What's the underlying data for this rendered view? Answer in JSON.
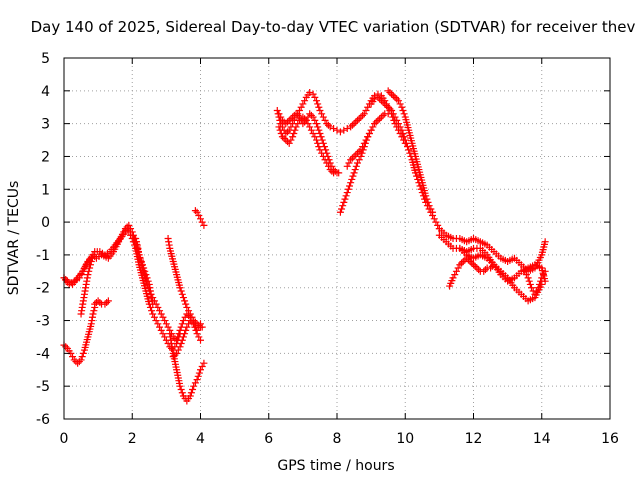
{
  "chart_data": {
    "type": "scatter",
    "title": "Day 140 of 2025, Sidereal Day-to-day VTEC variation (SDTVAR) for receiver thev",
    "xlabel": "GPS time / hours",
    "ylabel": "SDTVAR / TECUs",
    "xlim": [
      0,
      16
    ],
    "ylim": [
      -6,
      5
    ],
    "x_ticks": [
      "0",
      "2",
      "4",
      "6",
      "8",
      "10",
      "12",
      "14",
      "16"
    ],
    "y_ticks": [
      "-6",
      "-5",
      "-4",
      "-3",
      "-2",
      "-1",
      "0",
      "1",
      "2",
      "3",
      "4",
      "5"
    ],
    "grid": true,
    "marker": "+",
    "color": "#ff0000",
    "series": [
      {
        "x": [
          0.0,
          0.1,
          0.25,
          0.4,
          0.55,
          0.65,
          0.8,
          0.9,
          1.05,
          1.2,
          1.35,
          1.5,
          1.65,
          1.8,
          1.9
        ],
        "y": [
          -1.7,
          -1.8,
          -1.9,
          -1.7,
          -1.5,
          -1.3,
          -1.1,
          -0.9,
          -0.9,
          -1.0,
          -0.9,
          -0.7,
          -0.5,
          -0.3,
          -0.2
        ]
      },
      {
        "x": [
          0.0,
          0.15,
          0.3,
          0.45,
          0.55,
          0.7,
          0.85,
          0.95,
          1.1,
          1.3,
          1.45,
          1.6,
          1.75,
          1.85
        ],
        "y": [
          -1.7,
          -1.9,
          -1.8,
          -1.7,
          -1.5,
          -1.2,
          -1.0,
          -1.1,
          -1.0,
          -1.1,
          -0.9,
          -0.6,
          -0.3,
          -0.2
        ]
      },
      {
        "x": [
          0.5,
          0.55,
          0.6,
          0.65,
          0.7,
          0.75,
          0.8,
          0.85
        ],
        "y": [
          -2.8,
          -2.5,
          -2.2,
          -1.9,
          -1.6,
          -1.4,
          -1.2,
          -1.0
        ]
      },
      {
        "x": [
          0.0,
          0.1,
          0.2,
          0.3,
          0.4,
          0.5,
          0.6,
          0.7,
          0.8,
          0.85,
          0.9
        ],
        "y": [
          -3.75,
          -3.85,
          -4.0,
          -4.2,
          -4.3,
          -4.2,
          -3.9,
          -3.5,
          -3.1,
          -2.8,
          -2.6
        ]
      },
      {
        "x": [
          0.9,
          1.0,
          1.1,
          1.2,
          1.3
        ],
        "y": [
          -2.5,
          -2.4,
          -2.5,
          -2.5,
          -2.4
        ]
      },
      {
        "x": [
          1.8,
          1.9,
          2.0,
          2.1,
          2.2,
          2.3,
          2.4,
          2.5,
          2.6,
          2.7,
          2.8,
          2.9,
          3.0,
          3.1,
          3.2,
          3.3,
          3.4,
          3.5,
          3.6,
          3.7,
          3.8,
          3.9,
          4.0
        ],
        "y": [
          -0.2,
          -0.1,
          -0.3,
          -0.6,
          -1.0,
          -1.4,
          -1.8,
          -2.1,
          -2.3,
          -2.5,
          -2.7,
          -2.9,
          -3.1,
          -3.3,
          -3.5,
          -3.6,
          -3.3,
          -3.0,
          -2.8,
          -2.9,
          -3.1,
          -3.3,
          -3.1
        ]
      },
      {
        "x": [
          1.9,
          2.0,
          2.1,
          2.2,
          2.3,
          2.4,
          2.5,
          2.6,
          2.7,
          2.8,
          2.9,
          3.0,
          3.1,
          3.2,
          3.3,
          3.4
        ],
        "y": [
          -0.3,
          -0.5,
          -0.8,
          -1.3,
          -1.7,
          -2.1,
          -2.5,
          -2.8,
          -3.0,
          -3.2,
          -3.4,
          -3.6,
          -3.8,
          -3.9,
          -3.7,
          -3.4
        ]
      },
      {
        "x": [
          2.1,
          2.15,
          2.2,
          2.3,
          2.4,
          2.5,
          2.55,
          2.6
        ],
        "y": [
          -0.5,
          -0.7,
          -1.0,
          -1.3,
          -1.6,
          -1.9,
          -2.2,
          -2.5
        ]
      },
      {
        "x": [
          3.05,
          3.1,
          3.2,
          3.3,
          3.4,
          3.5,
          3.6,
          3.7,
          3.8,
          3.9,
          4.0,
          4.05
        ],
        "y": [
          -0.5,
          -0.8,
          -1.2,
          -1.6,
          -2.0,
          -2.3,
          -2.6,
          -2.8,
          -3.0,
          -3.1,
          -3.2,
          -3.2
        ]
      },
      {
        "x": [
          3.1,
          3.15,
          3.2,
          3.3,
          3.4,
          3.5,
          3.6,
          3.7,
          3.8,
          3.9,
          4.0,
          4.1
        ],
        "y": [
          -3.4,
          -3.7,
          -4.0,
          -4.5,
          -5.0,
          -5.3,
          -5.45,
          -5.3,
          -5.0,
          -4.8,
          -4.5,
          -4.3
        ]
      },
      {
        "x": [
          3.2,
          3.3,
          3.4,
          3.5,
          3.6,
          3.7,
          3.8,
          3.9,
          4.0
        ],
        "y": [
          -4.1,
          -4.0,
          -3.8,
          -3.5,
          -3.2,
          -3.0,
          -3.1,
          -3.4,
          -3.6
        ]
      },
      {
        "x": [
          3.85,
          3.9,
          3.95,
          4.0,
          4.05,
          4.1
        ],
        "y": [
          0.35,
          0.3,
          0.2,
          0.1,
          0.0,
          -0.1
        ]
      },
      {
        "x": [
          6.25,
          6.3,
          6.35,
          6.4,
          6.45,
          6.5,
          6.6,
          6.7,
          6.8,
          6.9,
          7.0,
          7.1,
          7.2,
          7.3,
          7.4,
          7.5,
          7.6,
          7.7,
          7.8,
          7.9,
          8.0,
          8.1,
          8.2,
          8.3,
          8.4,
          8.5,
          8.6,
          8.7,
          8.8,
          8.9,
          9.0,
          9.1,
          9.2,
          9.3,
          9.4,
          9.5,
          9.6,
          9.7,
          9.8,
          9.9,
          10.0
        ],
        "y": [
          3.4,
          3.2,
          3.0,
          2.9,
          2.8,
          2.7,
          2.8,
          3.0,
          3.2,
          3.4,
          3.6,
          3.8,
          3.95,
          3.9,
          3.7,
          3.4,
          3.2,
          3.0,
          2.9,
          2.85,
          2.8,
          2.75,
          2.8,
          2.85,
          2.9,
          3.0,
          3.1,
          3.2,
          3.3,
          3.5,
          3.7,
          3.85,
          3.9,
          3.85,
          3.7,
          3.5,
          3.3,
          3.0,
          2.8,
          2.6,
          2.4
        ]
      },
      {
        "x": [
          6.3,
          6.4,
          6.5,
          6.6,
          6.7,
          6.8,
          6.9,
          7.0,
          7.1,
          7.2,
          7.3,
          7.4,
          7.5,
          7.6,
          7.7,
          7.8,
          7.9,
          8.0,
          8.05
        ],
        "y": [
          3.3,
          3.1,
          3.0,
          3.1,
          3.2,
          3.3,
          3.2,
          3.0,
          3.1,
          3.3,
          3.2,
          3.0,
          2.7,
          2.4,
          2.1,
          1.8,
          1.6,
          1.5,
          1.5
        ]
      },
      {
        "x": [
          6.3,
          6.4,
          6.5,
          6.6,
          6.7,
          6.8,
          6.9,
          7.0,
          7.1,
          7.2,
          7.3,
          7.4,
          7.5,
          7.6,
          7.7,
          7.8,
          7.9
        ],
        "y": [
          2.9,
          2.6,
          2.5,
          2.4,
          2.6,
          2.9,
          3.1,
          3.2,
          3.1,
          2.9,
          2.7,
          2.5,
          2.2,
          2.0,
          1.8,
          1.6,
          1.5
        ]
      },
      {
        "x": [
          8.1,
          8.2,
          8.3,
          8.4,
          8.5,
          8.6,
          8.7,
          8.8,
          8.9,
          9.0,
          9.1,
          9.2,
          9.3,
          9.4,
          9.5
        ],
        "y": [
          0.3,
          0.6,
          0.9,
          1.2,
          1.5,
          1.8,
          2.0,
          2.3,
          2.6,
          2.8,
          3.0,
          3.1,
          3.2,
          3.3,
          3.3
        ]
      },
      {
        "x": [
          8.3,
          8.4,
          8.5,
          8.6,
          8.7,
          8.8,
          8.9,
          9.0
        ],
        "y": [
          1.7,
          1.9,
          2.0,
          2.1,
          2.2,
          2.4,
          2.6,
          2.8
        ]
      },
      {
        "x": [
          9.0,
          9.1,
          9.2,
          9.3,
          9.4,
          9.5,
          9.6,
          9.7,
          9.8,
          9.9,
          10.0,
          10.1,
          10.2,
          10.3,
          10.4,
          10.5,
          10.6,
          10.7,
          10.8,
          10.9,
          11.0
        ],
        "y": [
          3.6,
          3.75,
          3.8,
          3.7,
          3.6,
          3.5,
          3.4,
          3.2,
          3.0,
          2.8,
          2.5,
          2.2,
          1.9,
          1.5,
          1.2,
          0.9,
          0.6,
          0.4,
          0.2,
          0.0,
          -0.2
        ]
      },
      {
        "x": [
          9.5,
          9.6,
          9.7,
          9.8,
          9.9,
          10.0,
          10.1,
          10.2,
          10.3,
          10.4,
          10.5,
          10.6,
          10.7,
          10.8
        ],
        "y": [
          4.0,
          3.9,
          3.8,
          3.7,
          3.5,
          3.2,
          2.8,
          2.4,
          2.0,
          1.6,
          1.2,
          0.8,
          0.5,
          0.3
        ]
      },
      {
        "x": [
          11.0,
          11.2,
          11.4,
          11.6,
          11.8,
          12.0,
          12.2,
          12.4,
          12.6,
          12.8,
          13.0,
          13.2,
          13.4,
          13.6,
          13.8,
          14.0,
          14.1
        ],
        "y": [
          -0.2,
          -0.4,
          -0.5,
          -0.5,
          -0.6,
          -0.5,
          -0.6,
          -0.7,
          -0.9,
          -1.1,
          -1.2,
          -1.1,
          -1.3,
          -1.5,
          -1.4,
          -1.0,
          -0.6
        ]
      },
      {
        "x": [
          11.0,
          11.2,
          11.4,
          11.6,
          11.8,
          12.0,
          12.2,
          12.4,
          12.6,
          12.8,
          13.0,
          13.2,
          13.4,
          13.6,
          13.8,
          14.0,
          14.1
        ],
        "y": [
          -0.4,
          -0.6,
          -0.8,
          -0.8,
          -0.9,
          -0.8,
          -0.8,
          -1.0,
          -1.3,
          -1.6,
          -1.8,
          -1.7,
          -1.5,
          -1.4,
          -1.3,
          -1.4,
          -1.8
        ]
      },
      {
        "x": [
          11.3,
          11.4,
          11.5,
          11.6,
          11.7,
          11.8,
          11.9,
          12.0,
          12.1,
          12.2,
          12.3,
          12.4,
          12.5,
          12.6
        ],
        "y": [
          -1.95,
          -1.7,
          -1.5,
          -1.3,
          -1.2,
          -1.1,
          -1.2,
          -1.3,
          -1.4,
          -1.5,
          -1.5,
          -1.4,
          -1.4,
          -1.3
        ]
      },
      {
        "x": [
          11.6,
          11.8,
          12.0,
          12.2,
          12.4,
          12.6,
          12.8,
          13.0,
          13.2,
          13.4,
          13.6,
          13.8,
          14.0
        ],
        "y": [
          -0.8,
          -1.0,
          -1.1,
          -1.0,
          -1.1,
          -1.3,
          -1.5,
          -1.7,
          -2.0,
          -2.2,
          -2.4,
          -2.3,
          -1.9
        ]
      },
      {
        "x": [
          13.5,
          13.6,
          13.7,
          13.8,
          13.9,
          14.0,
          14.1
        ],
        "y": [
          -1.5,
          -1.7,
          -2.0,
          -2.2,
          -2.0,
          -1.7,
          -1.5
        ]
      }
    ]
  }
}
